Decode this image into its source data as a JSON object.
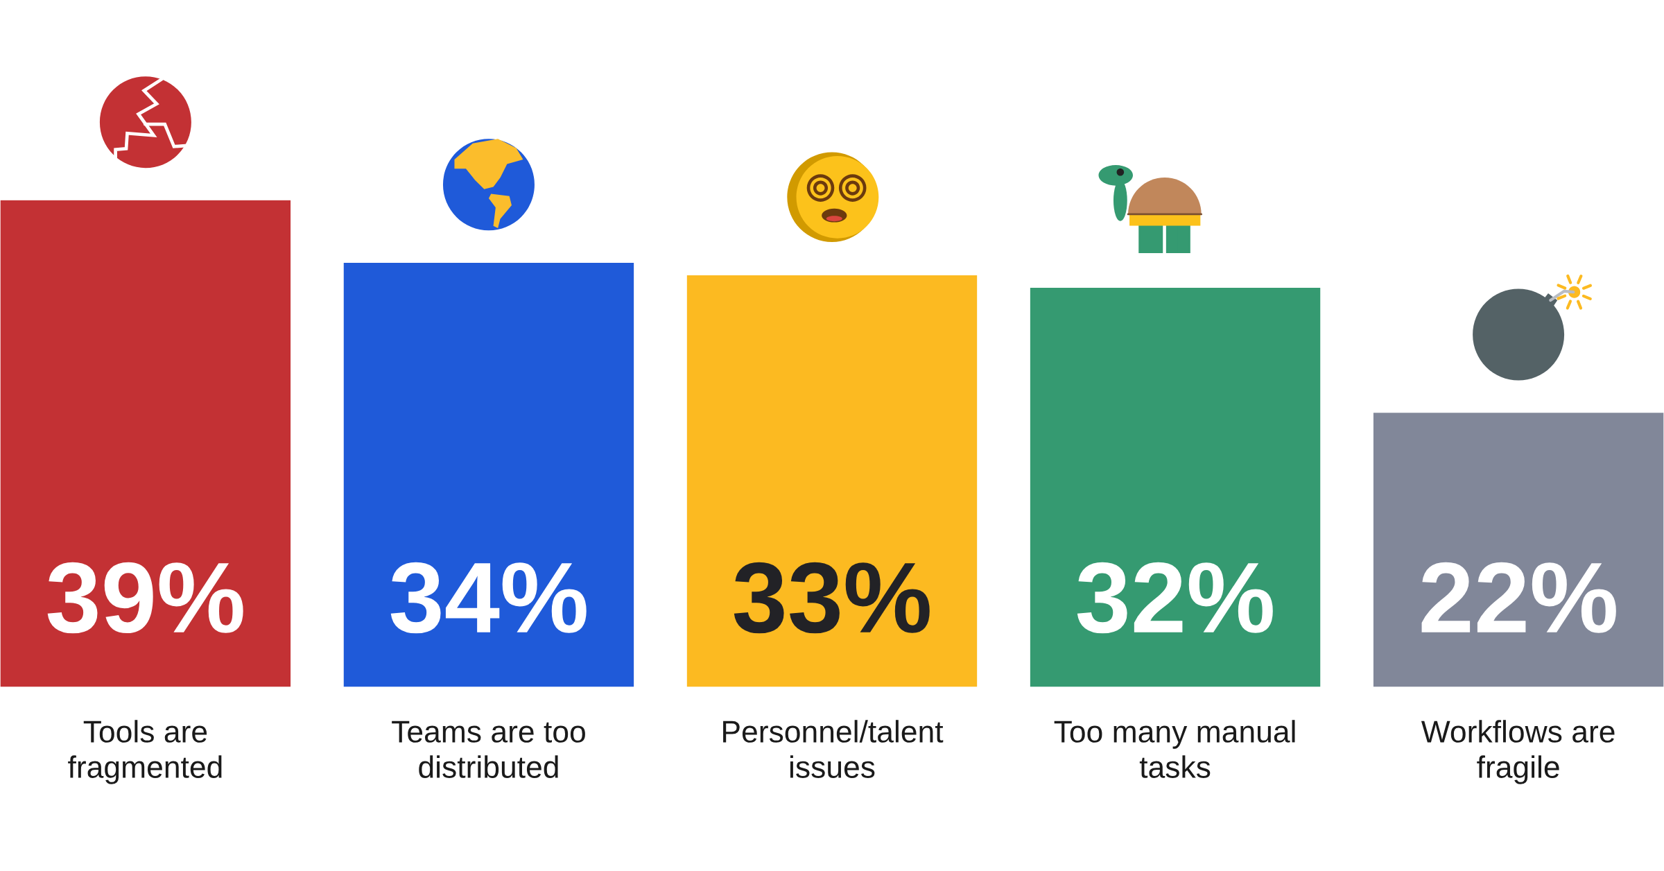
{
  "chart_data": {
    "type": "bar",
    "categories": [
      "Tools are\nfragmented",
      "Teams are too\ndistributed",
      "Personnel/talent\nissues",
      "Too many manual\ntasks",
      "Workflows are\nfragile"
    ],
    "values": [
      39,
      34,
      33,
      32,
      22
    ],
    "colors": [
      "#c33134",
      "#1f5ad9",
      "#fcba21",
      "#359a71",
      "#818799"
    ],
    "value_labels": [
      "39%",
      "34%",
      "33%",
      "32%",
      "22%"
    ],
    "tick_labels": "x"
  }
}
